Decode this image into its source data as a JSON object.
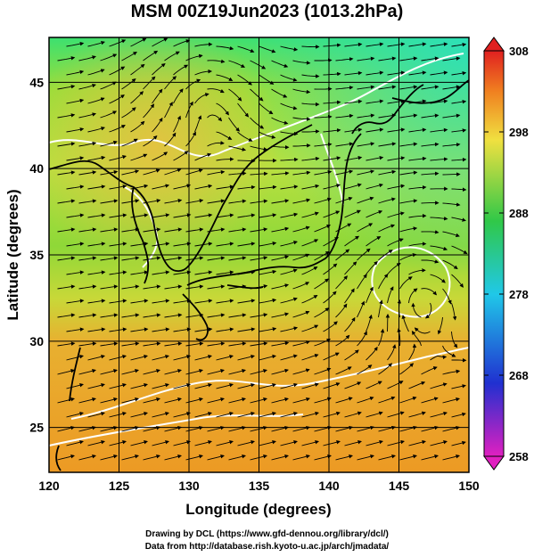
{
  "title": "MSM 00Z19Jun2023 (1013.2hPa)",
  "x_axis": {
    "label": "Longitude (degrees)",
    "range": [
      120,
      150
    ],
    "ticks": [
      120,
      125,
      130,
      135,
      140,
      145,
      150
    ]
  },
  "y_axis": {
    "label": "Latitude  (degrees)",
    "range": [
      22.4,
      47.6
    ],
    "ticks": [
      25,
      30,
      35,
      40,
      45
    ]
  },
  "colorbar": {
    "range": [
      258,
      308
    ],
    "ticks": [
      258,
      268,
      278,
      288,
      298,
      308
    ],
    "colors": [
      "#e020c0",
      "#2030d0",
      "#20c8e8",
      "#30c848",
      "#f0e040",
      "#f08020",
      "#e02020"
    ]
  },
  "credits": [
    "Drawing by DCL (https://www.gfd-dennou.org/library/dcl/)",
    "Data from http://database.rish.kyoto-u.ac.jp/arch/jmadata/"
  ]
}
